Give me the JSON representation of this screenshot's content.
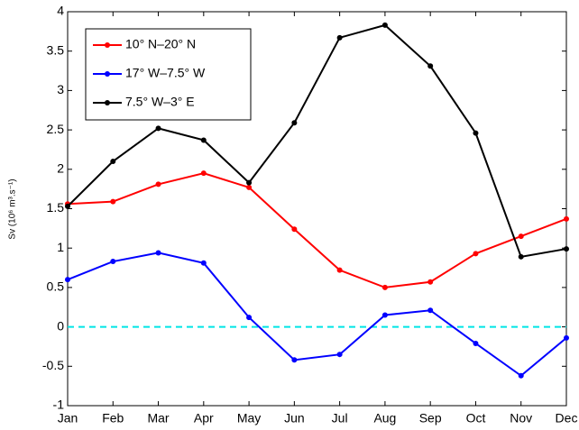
{
  "chart_data": {
    "type": "line",
    "ylabel": "Sv (10⁶ m³.s⁻¹)",
    "categories": [
      "Jan",
      "Feb",
      "Mar",
      "Apr",
      "May",
      "Jun",
      "Jul",
      "Aug",
      "Sep",
      "Oct",
      "Nov",
      "Dec"
    ],
    "series": [
      {
        "name": "10° N–20° N",
        "color": "#ff0000",
        "values": [
          1.56,
          1.59,
          1.81,
          1.95,
          1.77,
          1.24,
          0.72,
          0.5,
          0.57,
          0.93,
          1.15,
          1.37
        ]
      },
      {
        "name": "17° W–7.5° W",
        "color": "#0000ff",
        "values": [
          0.6,
          0.83,
          0.94,
          0.81,
          0.12,
          -0.42,
          -0.35,
          0.15,
          0.21,
          -0.21,
          -0.62,
          -0.14
        ]
      },
      {
        "name": "7.5° W–3° E",
        "color": "#000000",
        "values": [
          1.53,
          2.1,
          2.52,
          2.37,
          1.83,
          2.59,
          3.67,
          3.83,
          3.31,
          2.46,
          0.89,
          0.99
        ]
      }
    ],
    "ylim": [
      -1,
      4
    ],
    "yticks": [
      -1,
      -0.5,
      0,
      0.5,
      1,
      1.5,
      2,
      2.5,
      3,
      3.5,
      4
    ],
    "reference_line": {
      "value": 0,
      "color": "#00e5e5"
    },
    "legend": "upper left"
  }
}
